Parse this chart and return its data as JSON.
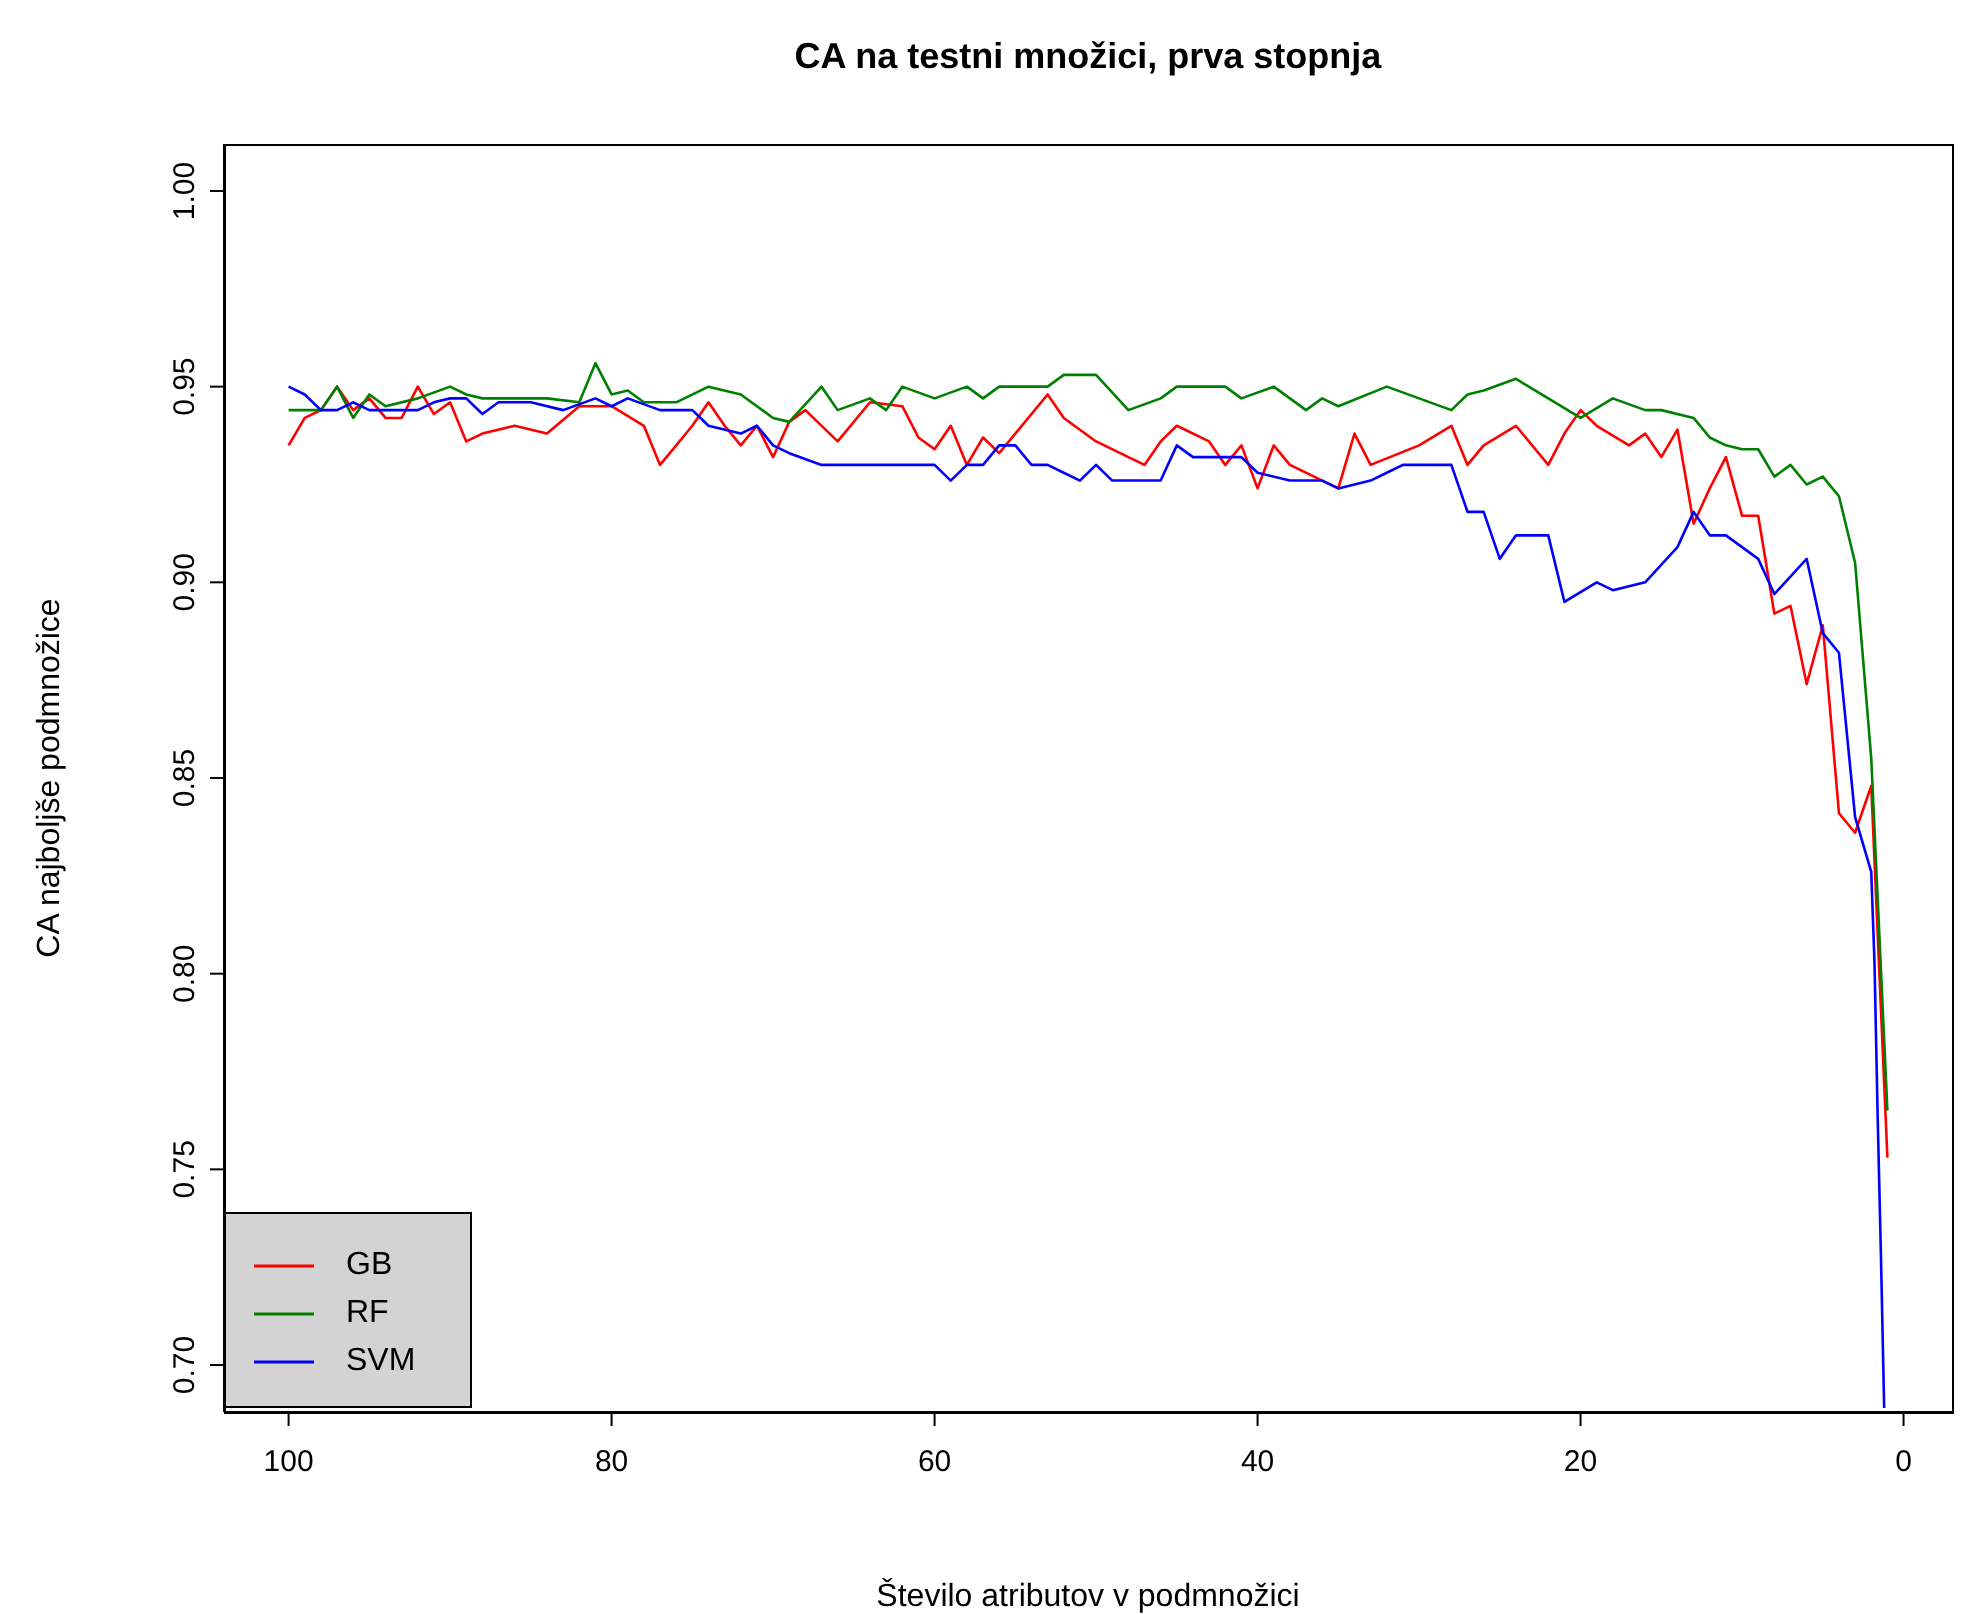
{
  "chart_data": {
    "type": "line",
    "title": "CA na testni množici, prva stopnja",
    "xlabel": "Število atributov v podmnožici",
    "ylabel": "CA najboljše podmnožice",
    "xlim": [
      104,
      -3
    ],
    "xticks": [
      100,
      80,
      60,
      40,
      20,
      0
    ],
    "ylim": [
      0.688,
      1.012
    ],
    "yticks": [
      {
        "value": 0.7,
        "label": "0.70"
      },
      {
        "value": 0.75,
        "label": "0.75"
      },
      {
        "value": 0.8,
        "label": "0.80"
      },
      {
        "value": 0.85,
        "label": "0.85"
      },
      {
        "value": 0.9,
        "label": "0.90"
      },
      {
        "value": 0.95,
        "label": "0.95"
      },
      {
        "value": 1.0,
        "label": "1.00"
      }
    ],
    "legend": "bottom left",
    "series": [
      {
        "name": "GB",
        "color": "#ff0000",
        "x": [
          100,
          99,
          98,
          97,
          96,
          95,
          94,
          93,
          92,
          91,
          90,
          89,
          88,
          86,
          84,
          82,
          80,
          78,
          77,
          76,
          75,
          74,
          73,
          72,
          71,
          70,
          69,
          68,
          66,
          64,
          62,
          61,
          60,
          59,
          58,
          57,
          56,
          55,
          53,
          52,
          50,
          48,
          47,
          46,
          45,
          43,
          42,
          41,
          40,
          39,
          38,
          35,
          34,
          33,
          30,
          28,
          27,
          26,
          24,
          22,
          21,
          20,
          19,
          17,
          16,
          15,
          14,
          13,
          12,
          11,
          10,
          9,
          8,
          7,
          6,
          5,
          4,
          3,
          2,
          1
        ],
        "values": [
          0.935,
          0.942,
          0.944,
          0.95,
          0.944,
          0.947,
          0.942,
          0.942,
          0.95,
          0.943,
          0.946,
          0.936,
          0.938,
          0.94,
          0.938,
          0.945,
          0.945,
          0.94,
          0.93,
          0.935,
          0.94,
          0.946,
          0.94,
          0.935,
          0.94,
          0.932,
          0.941,
          0.944,
          0.936,
          0.946,
          0.945,
          0.937,
          0.934,
          0.94,
          0.93,
          0.937,
          0.933,
          0.938,
          0.948,
          0.942,
          0.936,
          0.932,
          0.93,
          0.936,
          0.94,
          0.936,
          0.93,
          0.935,
          0.924,
          0.935,
          0.93,
          0.924,
          0.938,
          0.93,
          0.935,
          0.94,
          0.93,
          0.935,
          0.94,
          0.93,
          0.938,
          0.944,
          0.94,
          0.935,
          0.938,
          0.932,
          0.939,
          0.915,
          0.924,
          0.932,
          0.917,
          0.917,
          0.892,
          0.894,
          0.874,
          0.889,
          0.841,
          0.836,
          0.848,
          0.753
        ]
      },
      {
        "name": "RF",
        "color": "#008000",
        "x": [
          100,
          98,
          97,
          96,
          95,
          94,
          92,
          90,
          89,
          88,
          86,
          84,
          82,
          81,
          80,
          79,
          78,
          76,
          74,
          72,
          70,
          69,
          67,
          66,
          64,
          63,
          62,
          60,
          58,
          57,
          56,
          53,
          52,
          50,
          48,
          46,
          45,
          42,
          41,
          39,
          37,
          36,
          35,
          32,
          30,
          28,
          27,
          26,
          24,
          22,
          20,
          18,
          16,
          15,
          13,
          12,
          11,
          10,
          9,
          8,
          7,
          6,
          5,
          4,
          3,
          2,
          1
        ],
        "values": [
          0.944,
          0.944,
          0.95,
          0.942,
          0.948,
          0.945,
          0.947,
          0.95,
          0.948,
          0.947,
          0.947,
          0.947,
          0.946,
          0.956,
          0.948,
          0.949,
          0.946,
          0.946,
          0.95,
          0.948,
          0.942,
          0.941,
          0.95,
          0.944,
          0.947,
          0.944,
          0.95,
          0.947,
          0.95,
          0.947,
          0.95,
          0.95,
          0.953,
          0.953,
          0.944,
          0.947,
          0.95,
          0.95,
          0.947,
          0.95,
          0.944,
          0.947,
          0.945,
          0.95,
          0.947,
          0.944,
          0.948,
          0.949,
          0.952,
          0.947,
          0.942,
          0.947,
          0.944,
          0.944,
          0.942,
          0.937,
          0.935,
          0.934,
          0.934,
          0.927,
          0.93,
          0.925,
          0.927,
          0.922,
          0.905,
          0.855,
          0.765
        ]
      },
      {
        "name": "SVM",
        "color": "#0000ff",
        "x": [
          100,
          99,
          98,
          97,
          96,
          95,
          94,
          92,
          91,
          90,
          89,
          88,
          87,
          85,
          83,
          81,
          80,
          79,
          77,
          75,
          74,
          72,
          71,
          70,
          69,
          67,
          66,
          60,
          59,
          58,
          57,
          56,
          55,
          54,
          53,
          52,
          51,
          50,
          49,
          46,
          45,
          44,
          41,
          40,
          38,
          36,
          35,
          33,
          32,
          31,
          28,
          27,
          26,
          25,
          24,
          22,
          21,
          19,
          18,
          16,
          14,
          13,
          12,
          11,
          9,
          8,
          6,
          5,
          4,
          3,
          2,
          1.8,
          1.6,
          1.4,
          1.2
        ],
        "values": [
          0.95,
          0.948,
          0.944,
          0.944,
          0.946,
          0.944,
          0.944,
          0.944,
          0.946,
          0.947,
          0.947,
          0.943,
          0.946,
          0.946,
          0.944,
          0.947,
          0.945,
          0.947,
          0.944,
          0.944,
          0.94,
          0.938,
          0.94,
          0.935,
          0.933,
          0.93,
          0.93,
          0.93,
          0.926,
          0.93,
          0.93,
          0.935,
          0.935,
          0.93,
          0.93,
          0.928,
          0.926,
          0.93,
          0.926,
          0.926,
          0.935,
          0.932,
          0.932,
          0.928,
          0.926,
          0.926,
          0.924,
          0.926,
          0.928,
          0.93,
          0.93,
          0.918,
          0.918,
          0.906,
          0.912,
          0.912,
          0.895,
          0.9,
          0.898,
          0.9,
          0.909,
          0.918,
          0.912,
          0.912,
          0.906,
          0.897,
          0.906,
          0.887,
          0.882,
          0.84,
          0.826,
          0.803,
          0.763,
          0.728,
          0.689
        ]
      }
    ]
  }
}
